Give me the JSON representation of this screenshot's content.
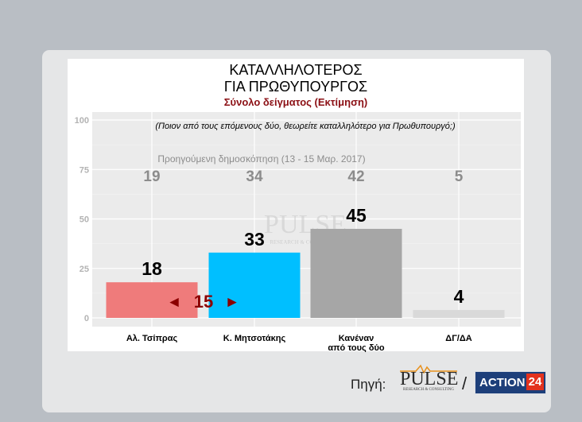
{
  "header": {
    "title_line1": "ΚΑΤΑΛΛΗΛΟΤΕΡΟΣ",
    "title_line2": "ΓΙΑ ΠΡΩΘΥΠΟΥΡΓΟΣ",
    "subtitle": "Σύνολο δείγματος   (Εκτίμηση)"
  },
  "chart_data": {
    "type": "bar",
    "question": "(Ποιον από τους επόμενους δύο, θεωρείτε καταλληλότερο για Πρωθυπουργό;)",
    "previous_label": "Προηγούμενη δημοσκόπηση (13 - 15 Μαρ. 2017)",
    "categories": [
      [
        "Αλ. Τσίπρας"
      ],
      [
        "Κ. Μητσοτάκης"
      ],
      [
        "Κανέναν",
        "από τους δύο"
      ],
      [
        "ΔΓ/ΔΑ"
      ]
    ],
    "values": [
      18,
      33,
      45,
      4
    ],
    "previous_values": [
      19,
      34,
      42,
      5
    ],
    "colors": [
      "#ef7b7b",
      "#00bfff",
      "#a6a6a6",
      "#d9d9d9"
    ],
    "ylim": [
      0,
      100
    ],
    "yticks": [
      0,
      25,
      50,
      75,
      100
    ],
    "gap_annotation": {
      "value": "15",
      "left_arrow": "◄",
      "right_arrow": "►",
      "color": "#8b0000"
    },
    "watermark": {
      "word": "PULSE",
      "sub": "RESEARCH & CONSULTING"
    },
    "grid": true
  },
  "footer": {
    "source_label": "Πηγή:",
    "separator": "/",
    "pulse_logo": {
      "word": "PULSE",
      "sub": "RESEARCH & CONSULTING"
    },
    "action_logo": {
      "word": "ACTION",
      "number": "24"
    }
  }
}
